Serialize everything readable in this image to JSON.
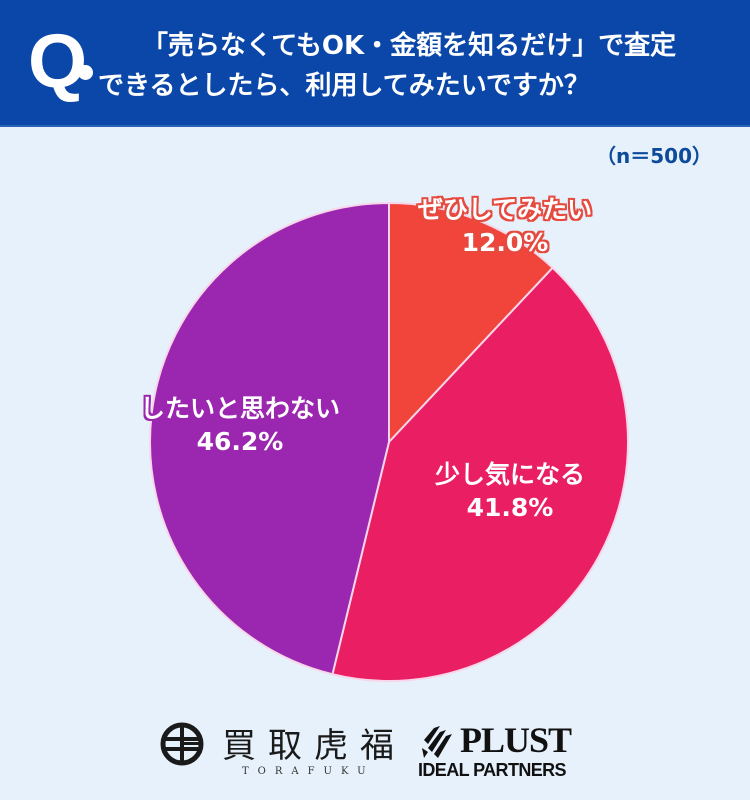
{
  "header": {
    "q_label": "Q",
    "question_line1": "「売らなくてもOK・金額を知るだけ」で査定",
    "question_line2": "できるとしたら、利用してみたいですか？"
  },
  "sample_size": "（n＝500）",
  "colors": {
    "header_bg": "#0a47a8",
    "page_bg": "#e6f1fc",
    "slice_very_much": "#f1443a",
    "slice_somewhat": "#e91e63",
    "slice_no": "#9b27b0"
  },
  "chart_data": {
    "type": "pie",
    "title": "「売らなくてもOK・金額を知るだけ」で査定できるとしたら、利用してみたいですか？",
    "n": 500,
    "categories": [
      "ぜひしてみたい",
      "少し気になる",
      "したいと思わない"
    ],
    "values": [
      12.0,
      41.8,
      46.2
    ],
    "unit": "%",
    "start_angle": "12 o'clock, clockwise",
    "labels": [
      "12.0%",
      "41.8%",
      "46.2%"
    ]
  },
  "slices": [
    {
      "name": "ぜひしてみたい",
      "pct": "12.0%"
    },
    {
      "name": "少し気になる",
      "pct": "41.8%"
    },
    {
      "name": "したいと思わない",
      "pct": "46.2%"
    }
  ],
  "footer": {
    "torafuku_kanji": "買取虎福",
    "torafuku_roman": "TORAFUKU",
    "plust_name": "PLUST",
    "plust_sub": "IDEAL PARTNERS"
  }
}
